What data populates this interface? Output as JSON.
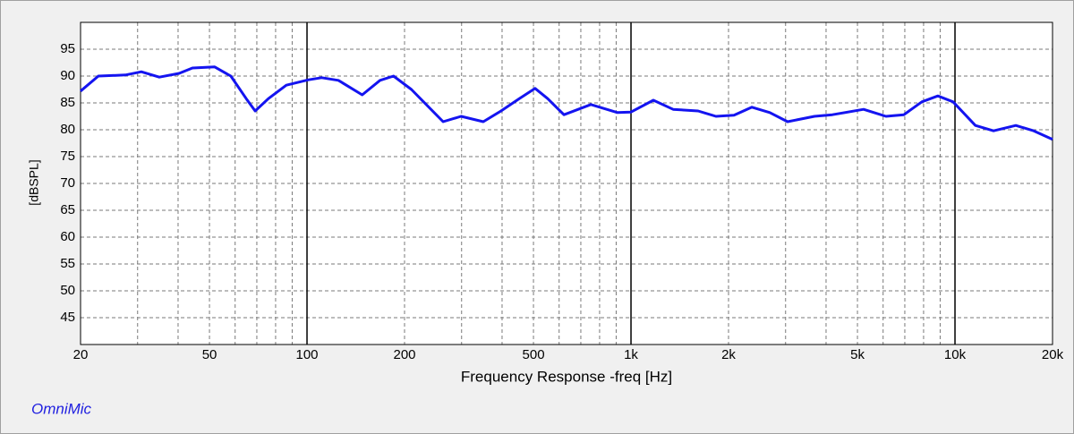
{
  "chart_data": {
    "type": "line",
    "title": "OmniMic",
    "xlabel": "Frequency Response -freq [Hz]",
    "ylabel": "[dBSPL]",
    "xscale": "log",
    "grid": true,
    "xlim": [
      20,
      20000
    ],
    "ylim": [
      40,
      100
    ],
    "xticks": [
      20,
      50,
      100,
      200,
      500,
      {
        "value": 1000,
        "label": "1k"
      },
      {
        "value": 2000,
        "label": "2k"
      },
      {
        "value": 5000,
        "label": "5k"
      },
      {
        "value": 10000,
        "label": "10k"
      },
      {
        "value": 20000,
        "label": "20k"
      }
    ],
    "xminor": [
      30,
      40,
      60,
      70,
      80,
      90,
      300,
      400,
      600,
      700,
      800,
      900,
      3000,
      4000,
      6000,
      7000,
      8000,
      9000
    ],
    "yticks": [
      45,
      50,
      55,
      60,
      65,
      70,
      75,
      80,
      85,
      90,
      95
    ],
    "series": [
      {
        "color": "#1414f0",
        "x": [
          20,
          22.7,
          27.5,
          30.8,
          35,
          40.3,
          44.3,
          51.9,
          58.2,
          64.9,
          69.2,
          76,
          86.3,
          101,
          111,
          125,
          148,
          168,
          185,
          210,
          263,
          299,
          350,
          397,
          452,
          506,
          553,
          621,
          752,
          908,
          1000,
          1172,
          1349,
          1611,
          1829,
          2079,
          2361,
          2681,
          3044,
          3684,
          4182,
          5224,
          6124,
          6952,
          7902,
          8853,
          9863,
          11560,
          13150,
          15410,
          17500,
          20000
        ],
        "values": [
          87.2,
          90,
          90.2,
          90.8,
          89.8,
          90.5,
          91.5,
          91.7,
          90,
          85.8,
          83.5,
          85.8,
          88.3,
          89.3,
          89.7,
          89.2,
          86.5,
          89.2,
          90,
          87.5,
          81.5,
          82.5,
          81.5,
          83.5,
          85.8,
          87.7,
          85.8,
          82.8,
          84.7,
          83.2,
          83.3,
          85.5,
          83.8,
          83.5,
          82.5,
          82.7,
          84.2,
          83.2,
          81.5,
          82.5,
          82.8,
          83.8,
          82.5,
          82.8,
          85.2,
          86.3,
          85.2,
          80.8,
          79.8,
          80.8,
          79.8,
          78.2
        ]
      }
    ]
  }
}
